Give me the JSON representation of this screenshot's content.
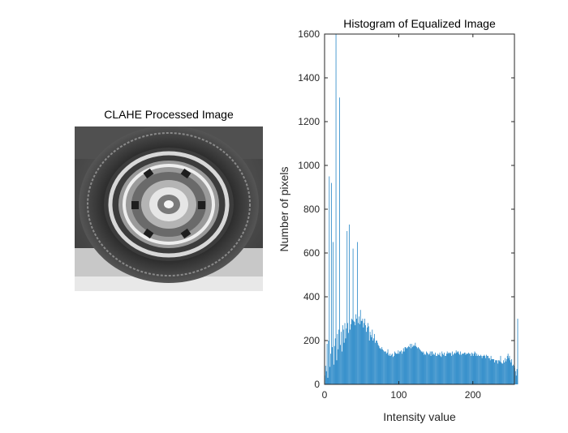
{
  "image_panel": {
    "title": "CLAHE Processed Image",
    "image_description": "grayscale photo of a car wheel and tire"
  },
  "chart_data": {
    "type": "bar",
    "title": "Histogram of Equalized Image",
    "xlabel": "Intensity value",
    "ylabel": "Number of pixels",
    "xlim": [
      0,
      256
    ],
    "ylim": [
      0,
      1600
    ],
    "xticks": [
      0,
      100,
      200
    ],
    "yticks": [
      0,
      200,
      400,
      600,
      800,
      1000,
      1200,
      1400,
      1600
    ],
    "bar_color": "#0072BD",
    "grid": false,
    "values": [
      40,
      85,
      60,
      185,
      30,
      200,
      950,
      80,
      140,
      920,
      170,
      650,
      90,
      175,
      210,
      1600,
      110,
      230,
      160,
      250,
      1310,
      180,
      240,
      150,
      270,
      250,
      190,
      280,
      210,
      255,
      700,
      280,
      235,
      730,
      250,
      275,
      300,
      295,
      620,
      290,
      285,
      270,
      320,
      300,
      650,
      280,
      310,
      275,
      340,
      290,
      290,
      300,
      260,
      280,
      300,
      270,
      240,
      260,
      280,
      265,
      200,
      240,
      225,
      215,
      250,
      200,
      210,
      230,
      190,
      200,
      200,
      190,
      180,
      175,
      165,
      165,
      160,
      170,
      160,
      155,
      150,
      150,
      150,
      140,
      145,
      160,
      135,
      130,
      140,
      130,
      135,
      140,
      125,
      130,
      150,
      145,
      140,
      140,
      140,
      155,
      140,
      150,
      150,
      155,
      140,
      150,
      165,
      150,
      170,
      170,
      165,
      165,
      170,
      175,
      170,
      185,
      165,
      185,
      170,
      175,
      180,
      175,
      190,
      175,
      170,
      165,
      170,
      165,
      160,
      155,
      150,
      150,
      145,
      150,
      135,
      140,
      135,
      150,
      145,
      140,
      135,
      140,
      150,
      130,
      150,
      150,
      135,
      140,
      135,
      145,
      130,
      130,
      140,
      135,
      135,
      145,
      130,
      125,
      150,
      140,
      135,
      145,
      130,
      130,
      140,
      150,
      140,
      145,
      145,
      140,
      145,
      130,
      150,
      135,
      140,
      145,
      140,
      155,
      145,
      150,
      150,
      140,
      135,
      150,
      135,
      140,
      140,
      140,
      145,
      145,
      135,
      140,
      140,
      140,
      145,
      140,
      140,
      130,
      145,
      140,
      130,
      140,
      150,
      145,
      130,
      140,
      130,
      135,
      130,
      130,
      135,
      130,
      120,
      130,
      130,
      135,
      130,
      120,
      135,
      130,
      130,
      120,
      120,
      110,
      130,
      115,
      115,
      115,
      115,
      100,
      110,
      110,
      110,
      95,
      110,
      110,
      105,
      130,
      100,
      95,
      95,
      110,
      100,
      120,
      105,
      115,
      130,
      140,
      120,
      130,
      110,
      100,
      115,
      85,
      90,
      85,
      75,
      60,
      40,
      70,
      300
    ]
  }
}
